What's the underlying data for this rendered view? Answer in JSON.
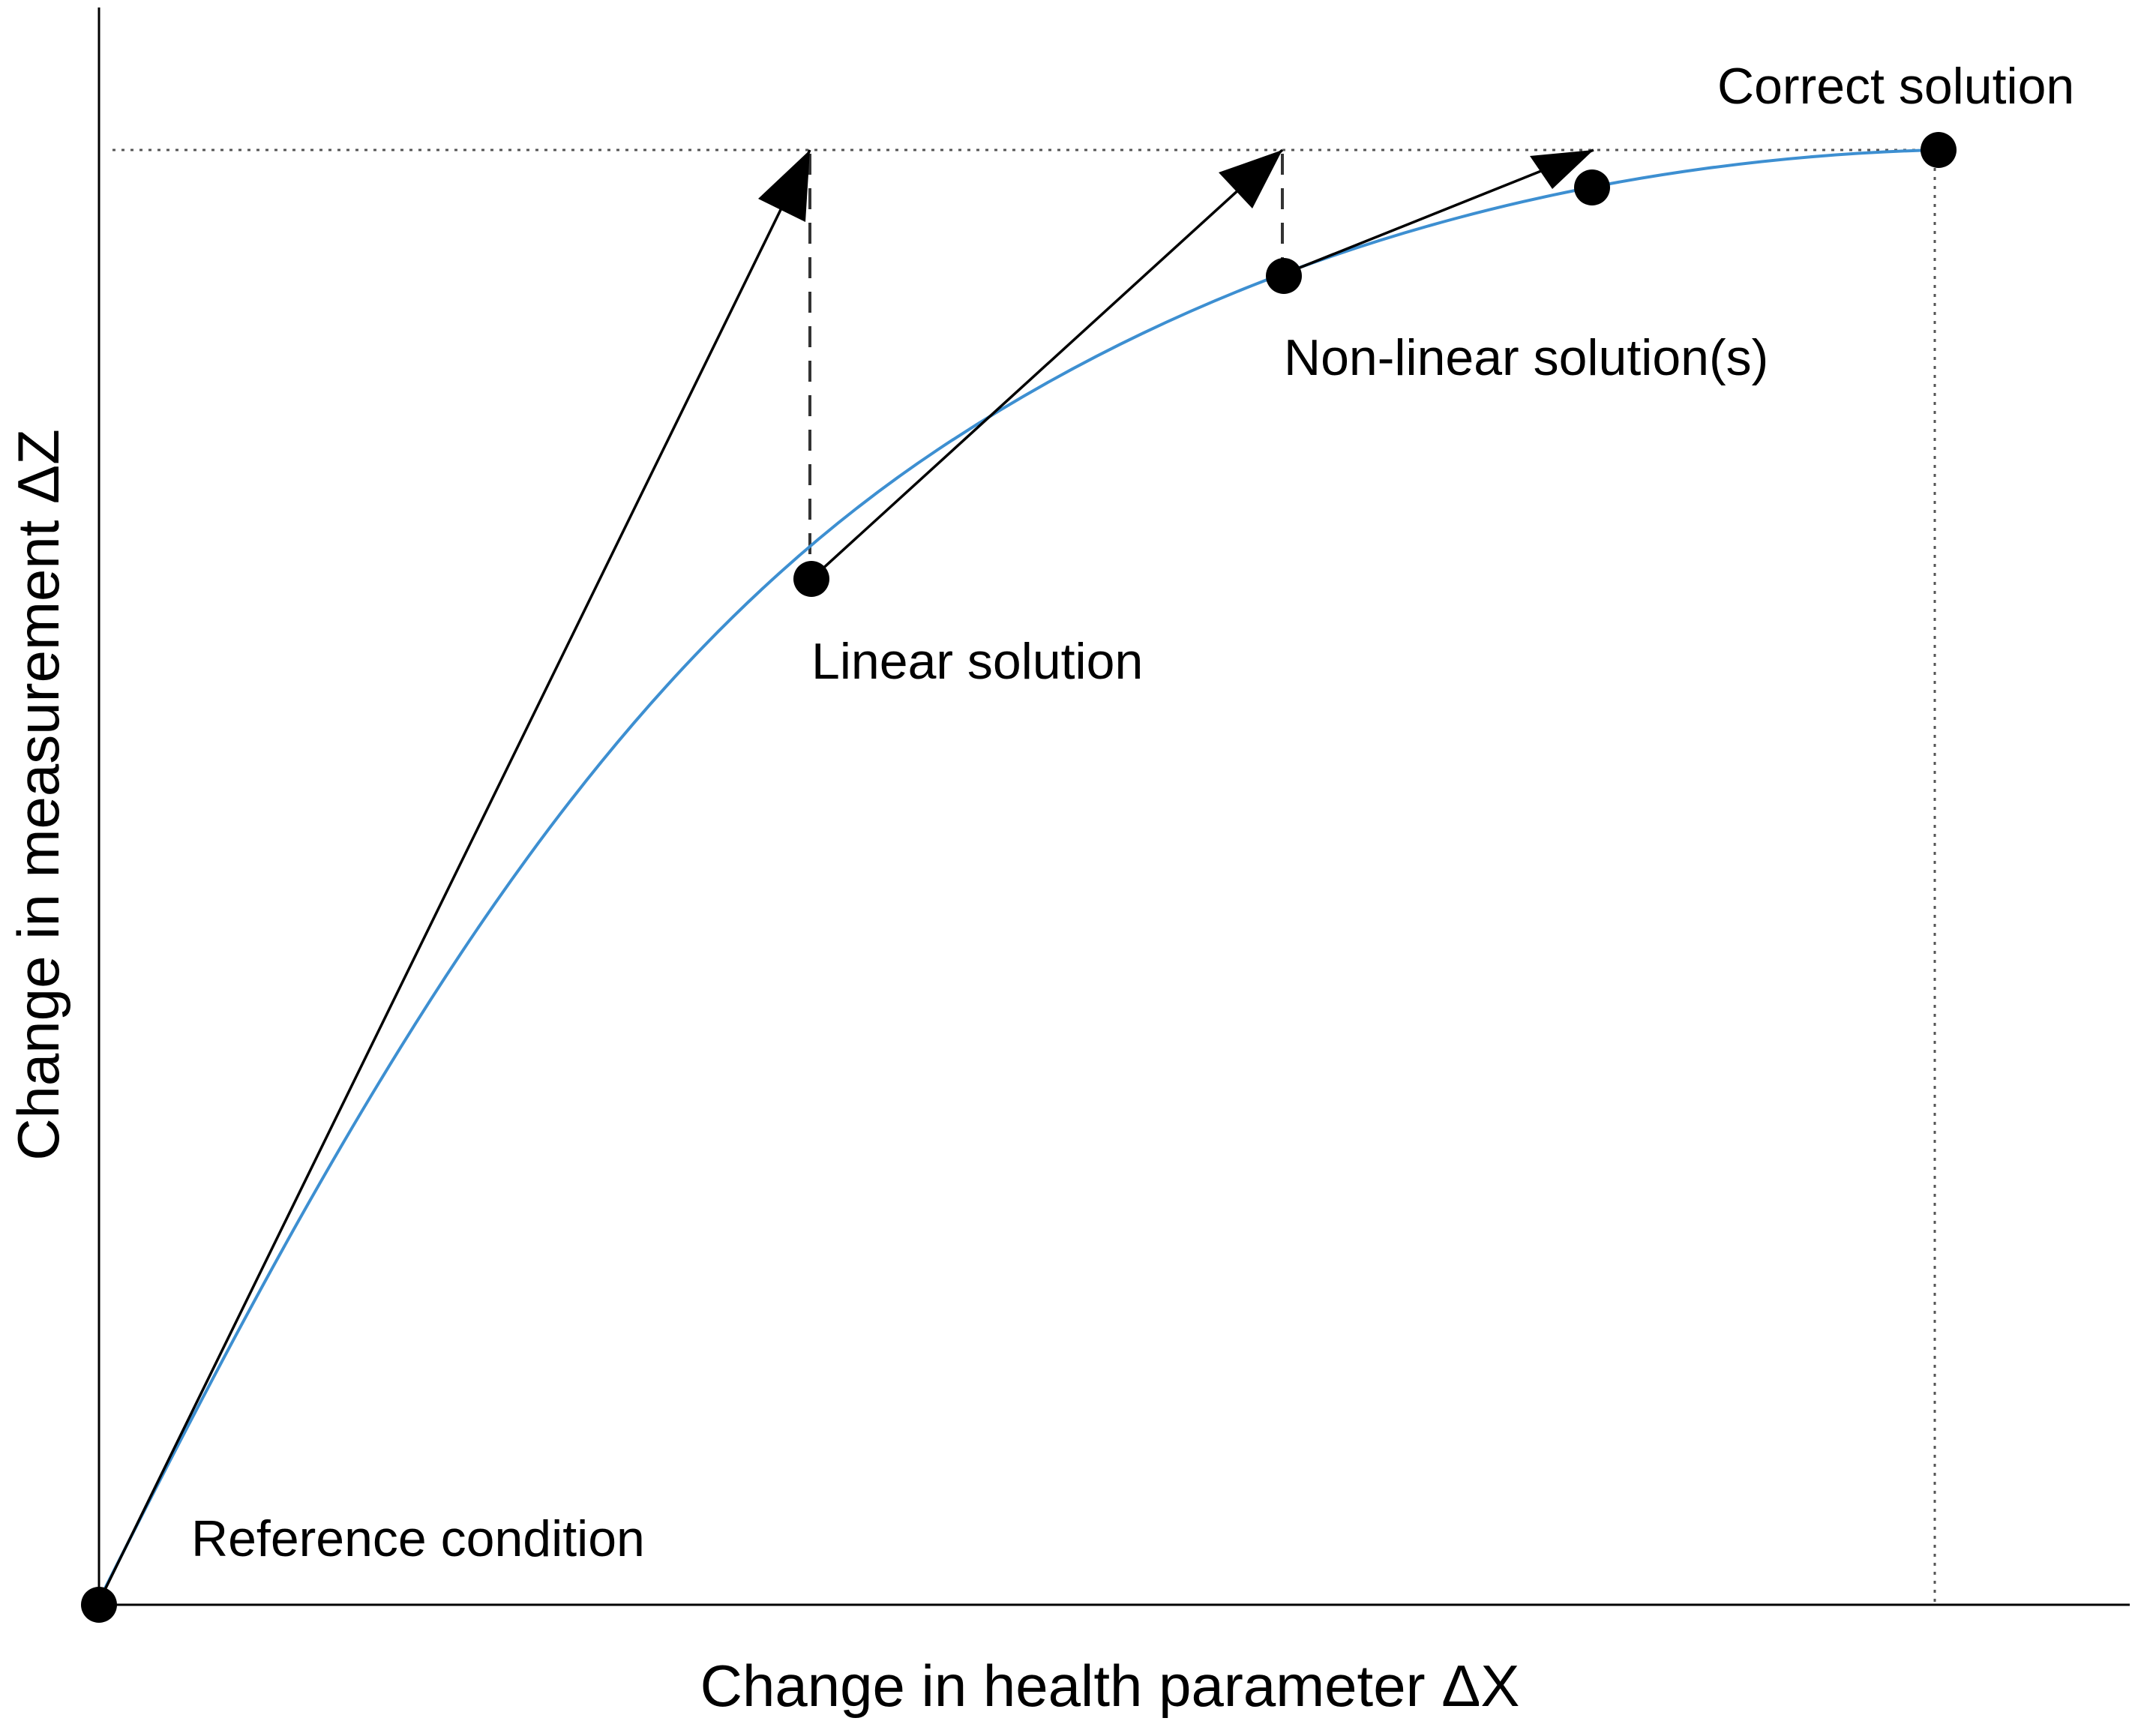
{
  "diagram": {
    "x_axis_label": "Change in health parameter ΔX",
    "y_axis_label": "Change in measurement ΔZ",
    "annotations": {
      "reference": "Reference condition",
      "linear": "Linear solution",
      "nonlinear": "Non-linear solution(s)",
      "correct": "Correct solution"
    },
    "colors": {
      "curve": "#3d8fd1",
      "axes": "#000000",
      "arrows": "#000000",
      "points": "#000000",
      "guides": "#555555"
    }
  }
}
